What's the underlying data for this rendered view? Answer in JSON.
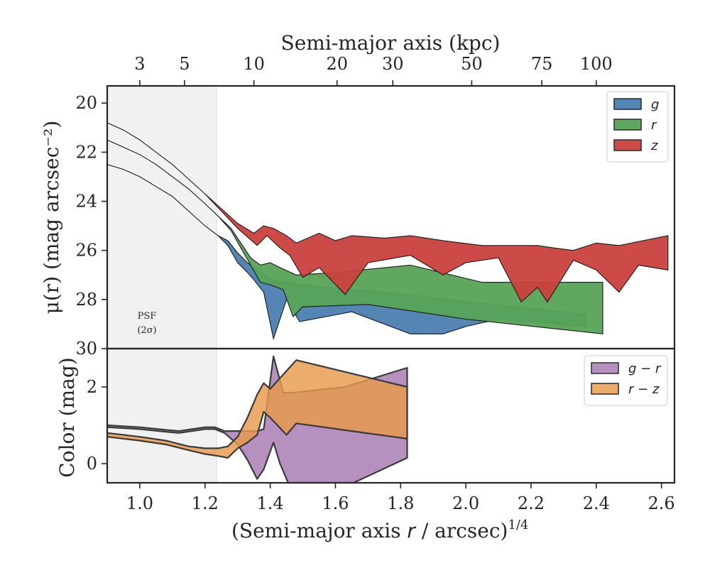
{
  "chart_data": [
    {
      "panel": "surface-brightness",
      "type": "area",
      "top_axis": {
        "label": "Semi-major axis (kpc)",
        "ticks": [
          {
            "value": 3,
            "label": "3"
          },
          {
            "value": 5,
            "label": "5"
          },
          {
            "value": 10,
            "label": "10"
          },
          {
            "value": 20,
            "label": "20"
          },
          {
            "value": 30,
            "label": "30"
          },
          {
            "value": 50,
            "label": "50"
          },
          {
            "value": 75,
            "label": "75"
          },
          {
            "value": 100,
            "label": "100"
          }
        ],
        "tick_positions_in_x": [
          1.0,
          1.137,
          1.35,
          1.605,
          1.776,
          2.018,
          2.233,
          2.4
        ]
      },
      "ylabel": "μ(r) (mag arcsec⁻²)",
      "ylim": [
        30,
        19.3
      ],
      "y_inverted": true,
      "yticks": [
        20,
        22,
        24,
        26,
        28,
        30
      ],
      "psf": {
        "label_line1": "PSF",
        "label_line2": "(2σ)",
        "x_range": [
          0.9,
          1.24
        ]
      },
      "legend": {
        "position": "top-right",
        "entries": [
          "g",
          "r",
          "z"
        ]
      },
      "series": [
        {
          "name": "g",
          "color": "#4c7eb0",
          "upper": [
            [
              0.9,
              22.5
            ],
            [
              0.95,
              22.7
            ],
            [
              1.0,
              23.0
            ],
            [
              1.05,
              23.4
            ],
            [
              1.1,
              23.8
            ],
            [
              1.15,
              24.4
            ],
            [
              1.2,
              25.0
            ],
            [
              1.24,
              25.4
            ],
            [
              1.27,
              25.6
            ],
            [
              1.3,
              26.1
            ],
            [
              1.33,
              26.5
            ],
            [
              1.35,
              26.7
            ],
            [
              1.38,
              27.0
            ],
            [
              1.41,
              27.2
            ],
            [
              1.45,
              27.3
            ],
            [
              1.5,
              27.4
            ],
            [
              1.65,
              27.6
            ],
            [
              1.83,
              27.8
            ],
            [
              2.0,
              28.1
            ],
            [
              2.15,
              28.3
            ],
            [
              2.37,
              28.6
            ]
          ],
          "lower": [
            [
              0.9,
              22.5
            ],
            [
              0.95,
              22.7
            ],
            [
              1.0,
              23.0
            ],
            [
              1.05,
              23.4
            ],
            [
              1.1,
              23.8
            ],
            [
              1.15,
              24.4
            ],
            [
              1.2,
              25.0
            ],
            [
              1.24,
              25.4
            ],
            [
              1.27,
              25.8
            ],
            [
              1.3,
              26.5
            ],
            [
              1.33,
              26.9
            ],
            [
              1.35,
              27.2
            ],
            [
              1.38,
              27.7
            ],
            [
              1.41,
              29.6
            ],
            [
              1.45,
              28.0
            ],
            [
              1.49,
              28.9
            ],
            [
              1.65,
              28.5
            ],
            [
              1.83,
              29.4
            ],
            [
              1.93,
              29.4
            ],
            [
              2.0,
              29.1
            ],
            [
              2.1,
              28.8
            ],
            [
              2.37,
              29.1
            ]
          ]
        },
        {
          "name": "r",
          "color": "#57a357",
          "upper": [
            [
              0.9,
              21.5
            ],
            [
              0.95,
              21.8
            ],
            [
              1.0,
              22.1
            ],
            [
              1.05,
              22.5
            ],
            [
              1.1,
              23.0
            ],
            [
              1.15,
              23.5
            ],
            [
              1.2,
              24.1
            ],
            [
              1.24,
              24.6
            ],
            [
              1.28,
              25.1
            ],
            [
              1.31,
              25.7
            ],
            [
              1.34,
              26.3
            ],
            [
              1.37,
              26.6
            ],
            [
              1.4,
              26.5
            ],
            [
              1.43,
              26.7
            ],
            [
              1.48,
              27.0
            ],
            [
              1.6,
              26.9
            ],
            [
              1.83,
              26.6
            ],
            [
              2.05,
              27.3
            ],
            [
              2.42,
              27.3
            ]
          ],
          "lower": [
            [
              0.9,
              21.5
            ],
            [
              0.95,
              21.8
            ],
            [
              1.0,
              22.1
            ],
            [
              1.05,
              22.5
            ],
            [
              1.1,
              23.0
            ],
            [
              1.15,
              23.5
            ],
            [
              1.2,
              24.1
            ],
            [
              1.24,
              24.6
            ],
            [
              1.28,
              25.2
            ],
            [
              1.31,
              25.9
            ],
            [
              1.34,
              26.6
            ],
            [
              1.37,
              27.3
            ],
            [
              1.4,
              27.4
            ],
            [
              1.44,
              27.6
            ],
            [
              1.47,
              28.7
            ],
            [
              1.5,
              28.3
            ],
            [
              1.7,
              28.2
            ],
            [
              2.0,
              28.8
            ],
            [
              2.42,
              29.4
            ]
          ]
        },
        {
          "name": "z",
          "color": "#c9403d",
          "upper": [
            [
              0.9,
              20.8
            ],
            [
              0.95,
              21.1
            ],
            [
              1.0,
              21.5
            ],
            [
              1.05,
              22.0
            ],
            [
              1.1,
              22.5
            ],
            [
              1.15,
              23.1
            ],
            [
              1.2,
              23.7
            ],
            [
              1.25,
              24.3
            ],
            [
              1.3,
              24.9
            ],
            [
              1.35,
              25.3
            ],
            [
              1.38,
              25.0
            ],
            [
              1.41,
              25.1
            ],
            [
              1.45,
              25.4
            ],
            [
              1.48,
              25.7
            ],
            [
              1.55,
              25.3
            ],
            [
              1.6,
              25.6
            ],
            [
              1.65,
              25.4
            ],
            [
              1.75,
              25.5
            ],
            [
              1.83,
              25.4
            ],
            [
              1.93,
              25.6
            ],
            [
              2.05,
              25.8
            ],
            [
              2.15,
              25.8
            ],
            [
              2.22,
              25.8
            ],
            [
              2.27,
              25.9
            ],
            [
              2.33,
              26.0
            ],
            [
              2.4,
              25.7
            ],
            [
              2.47,
              25.8
            ],
            [
              2.62,
              25.4
            ]
          ],
          "lower": [
            [
              0.9,
              20.8
            ],
            [
              0.95,
              21.1
            ],
            [
              1.0,
              21.5
            ],
            [
              1.05,
              22.0
            ],
            [
              1.1,
              22.5
            ],
            [
              1.15,
              23.1
            ],
            [
              1.2,
              23.7
            ],
            [
              1.25,
              24.4
            ],
            [
              1.3,
              25.1
            ],
            [
              1.36,
              25.8
            ],
            [
              1.39,
              25.4
            ],
            [
              1.43,
              25.9
            ],
            [
              1.46,
              26.2
            ],
            [
              1.5,
              27.1
            ],
            [
              1.55,
              26.7
            ],
            [
              1.63,
              27.8
            ],
            [
              1.7,
              26.5
            ],
            [
              1.83,
              26.2
            ],
            [
              1.93,
              27.0
            ],
            [
              2.0,
              26.5
            ],
            [
              2.1,
              26.3
            ],
            [
              2.17,
              28.1
            ],
            [
              2.22,
              27.5
            ],
            [
              2.25,
              28.1
            ],
            [
              2.33,
              26.4
            ],
            [
              2.4,
              26.8
            ],
            [
              2.47,
              27.7
            ],
            [
              2.53,
              26.6
            ],
            [
              2.62,
              26.8
            ]
          ]
        }
      ]
    },
    {
      "panel": "color",
      "type": "area",
      "xlabel": "(Semi-major axis r / arcsec)^1/4",
      "xlabel_main": "(Semi-major axis ",
      "xlabel_var": "r",
      "xlabel_tail": " / arcsec)",
      "xlabel_exp": "1/4",
      "xlim": [
        0.9,
        2.64
      ],
      "xticks": [
        1.0,
        1.2,
        1.4,
        1.6,
        1.8,
        2.0,
        2.2,
        2.4,
        2.6
      ],
      "xtick_labels": [
        "1.0",
        "1.2",
        "1.4",
        "1.6",
        "1.8",
        "2.0",
        "2.2",
        "2.4",
        "2.6"
      ],
      "ylabel": "Color (mag)",
      "ylim": [
        -0.5,
        3.0
      ],
      "yticks": [
        0,
        2
      ],
      "legend": {
        "position": "top-right",
        "entries": [
          "g − r",
          "r − z"
        ]
      },
      "series": [
        {
          "name": "g − r",
          "color": "#a679b2",
          "upper": [
            [
              0.9,
              1.0
            ],
            [
              1.0,
              0.95
            ],
            [
              1.08,
              0.88
            ],
            [
              1.12,
              0.85
            ],
            [
              1.16,
              0.9
            ],
            [
              1.2,
              0.95
            ],
            [
              1.23,
              0.95
            ],
            [
              1.26,
              0.85
            ],
            [
              1.3,
              0.85
            ],
            [
              1.34,
              0.85
            ],
            [
              1.36,
              0.85
            ],
            [
              1.38,
              0.9
            ],
            [
              1.41,
              2.8
            ],
            [
              1.44,
              1.85
            ],
            [
              1.47,
              1.85
            ],
            [
              1.63,
              2.0
            ],
            [
              1.82,
              2.5
            ]
          ],
          "lower": [
            [
              0.9,
              0.95
            ],
            [
              1.0,
              0.9
            ],
            [
              1.08,
              0.83
            ],
            [
              1.12,
              0.8
            ],
            [
              1.16,
              0.85
            ],
            [
              1.2,
              0.9
            ],
            [
              1.23,
              0.9
            ],
            [
              1.26,
              0.8
            ],
            [
              1.3,
              0.5
            ],
            [
              1.33,
              0.1
            ],
            [
              1.36,
              -0.4
            ],
            [
              1.38,
              -0.15
            ],
            [
              1.41,
              0.55
            ],
            [
              1.43,
              0.0
            ],
            [
              1.46,
              -0.6
            ],
            [
              1.63,
              -0.6
            ],
            [
              1.82,
              0.15
            ]
          ]
        },
        {
          "name": "r − z",
          "color": "#e89a4a",
          "upper": [
            [
              0.9,
              0.8
            ],
            [
              1.0,
              0.7
            ],
            [
              1.08,
              0.6
            ],
            [
              1.15,
              0.45
            ],
            [
              1.2,
              0.4
            ],
            [
              1.24,
              0.4
            ],
            [
              1.27,
              0.45
            ],
            [
              1.3,
              0.7
            ],
            [
              1.33,
              1.2
            ],
            [
              1.36,
              1.8
            ],
            [
              1.38,
              2.1
            ],
            [
              1.4,
              1.95
            ],
            [
              1.48,
              2.7
            ],
            [
              1.82,
              2.0
            ]
          ],
          "lower": [
            [
              0.9,
              0.7
            ],
            [
              1.0,
              0.6
            ],
            [
              1.08,
              0.5
            ],
            [
              1.15,
              0.35
            ],
            [
              1.2,
              0.25
            ],
            [
              1.24,
              0.2
            ],
            [
              1.27,
              0.15
            ],
            [
              1.3,
              0.4
            ],
            [
              1.33,
              0.55
            ],
            [
              1.36,
              0.75
            ],
            [
              1.38,
              1.35
            ],
            [
              1.4,
              1.2
            ],
            [
              1.45,
              0.75
            ],
            [
              1.48,
              1.05
            ],
            [
              1.82,
              0.65
            ]
          ]
        }
      ]
    }
  ]
}
